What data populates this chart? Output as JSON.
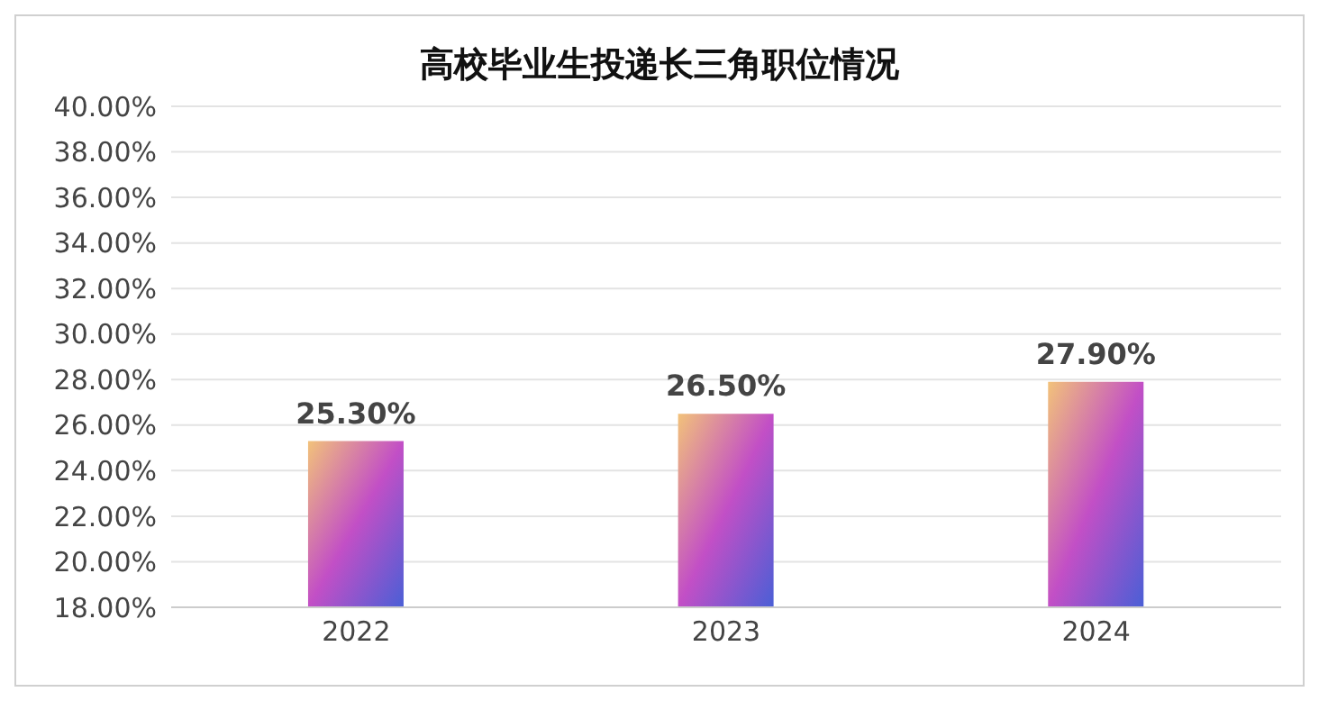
{
  "chart_data": {
    "type": "bar",
    "title": "高校毕业生投递长三角职位情况",
    "categories": [
      "2022",
      "2023",
      "2024"
    ],
    "values": [
      25.3,
      26.5,
      27.9
    ],
    "color": "#c24fc6",
    "value_labels": [
      "25.30%",
      "26.50%",
      "27.90%"
    ],
    "ylim": [
      18,
      40
    ],
    "yticks": [
      {
        "value": 18,
        "label": "18.00%"
      },
      {
        "value": 20,
        "label": "20.00%"
      },
      {
        "value": 22,
        "label": "22.00%"
      },
      {
        "value": 24,
        "label": "24.00%"
      },
      {
        "value": 26,
        "label": "26.00%"
      },
      {
        "value": 28,
        "label": "28.00%"
      },
      {
        "value": 30,
        "label": "30.00%"
      },
      {
        "value": 32,
        "label": "32.00%"
      },
      {
        "value": 34,
        "label": "34.00%"
      },
      {
        "value": 36,
        "label": "36.00%"
      },
      {
        "value": 38,
        "label": "38.00%"
      },
      {
        "value": 40,
        "label": "40.00%"
      }
    ],
    "grid": "y"
  }
}
